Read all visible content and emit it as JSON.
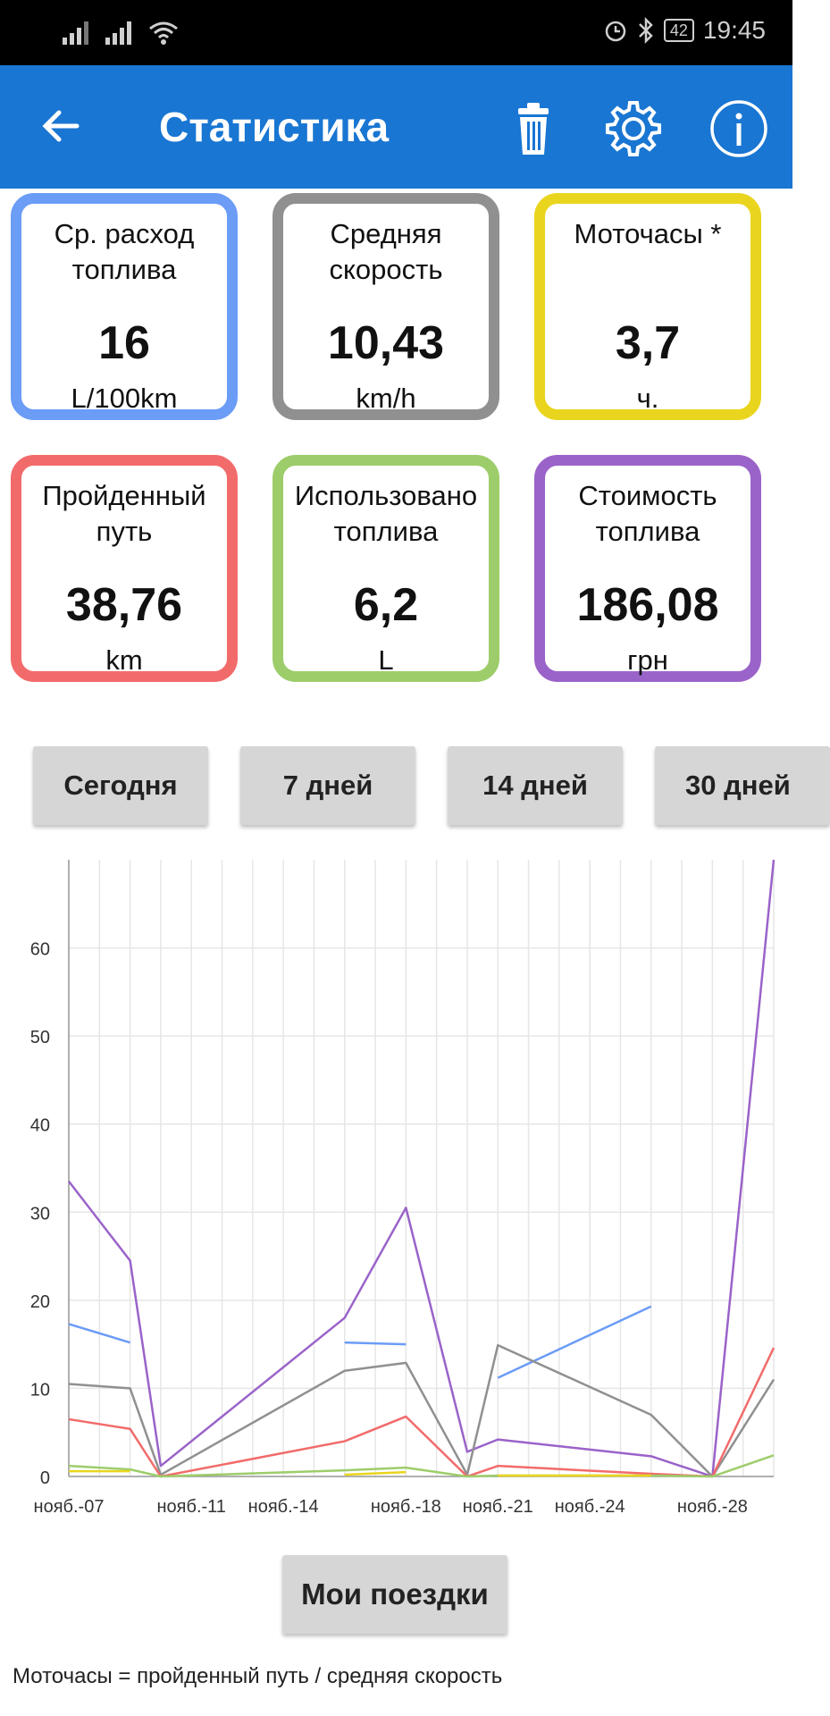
{
  "status_bar": {
    "battery": "42",
    "time": "19:45"
  },
  "header": {
    "title": "Статистика"
  },
  "cards": [
    {
      "label": "Ср. расход топлива",
      "value": "16",
      "unit": "L/100km",
      "color": "#6b9cf6"
    },
    {
      "label": "Средняя скорость",
      "value": "10,43",
      "unit": "km/h",
      "color": "#909090"
    },
    {
      "label": "Моточасы *",
      "value": "3,7",
      "unit": "ч.",
      "color": "#ead51e"
    },
    {
      "label": "Пройденный путь",
      "value": "38,76",
      "unit": "km",
      "color": "#f26b6b"
    },
    {
      "label": "Использовано топлива",
      "value": "6,2",
      "unit": "L",
      "color": "#9dcd6a"
    },
    {
      "label": "Стоимость топлива",
      "value": "186,08",
      "unit": "грн",
      "color": "#9a63c9"
    }
  ],
  "periods": [
    "Сегодня",
    "7 дней",
    "14 дней",
    "30 дней"
  ],
  "chart_data": {
    "type": "line",
    "x_tick_labels": [
      "нояб.-07",
      "нояб.-11",
      "нояб.-14",
      "нояб.-18",
      "нояб.-21",
      "нояб.-24",
      "нояб.-28"
    ],
    "ylim": [
      0,
      70
    ],
    "y_ticks": [
      0,
      10,
      20,
      30,
      40,
      50,
      60
    ],
    "grid": true,
    "series": [
      {
        "color": "#9a63c9",
        "points": [
          [
            7,
            33.5
          ],
          [
            9,
            24.5
          ],
          [
            10,
            1.2
          ],
          [
            16,
            18
          ],
          [
            18,
            30.5
          ],
          [
            20,
            2.8
          ],
          [
            21,
            4.2
          ],
          [
            26,
            2.3
          ],
          [
            28,
            0
          ],
          [
            30,
            70
          ]
        ]
      },
      {
        "color": "#6b9cf6",
        "points": [
          [
            7,
            17.3
          ],
          [
            9,
            15.2
          ],
          [
            null,
            null
          ],
          [
            16,
            15.2
          ],
          [
            18,
            15
          ],
          [
            null,
            null
          ],
          [
            21,
            11.2
          ],
          [
            26,
            19.3
          ]
        ]
      },
      {
        "color": "#909090",
        "points": [
          [
            7,
            10.5
          ],
          [
            9,
            10
          ],
          [
            10,
            0.2
          ],
          [
            16,
            12
          ],
          [
            18,
            12.9
          ],
          [
            20,
            0.2
          ],
          [
            21,
            14.9
          ],
          [
            26,
            7
          ],
          [
            28,
            0
          ],
          [
            30,
            11
          ]
        ]
      },
      {
        "color": "#f26b6b",
        "points": [
          [
            7,
            6.5
          ],
          [
            9,
            5.4
          ],
          [
            10,
            0
          ],
          [
            16,
            4
          ],
          [
            18,
            6.8
          ],
          [
            20,
            0
          ],
          [
            21,
            1.2
          ],
          [
            26,
            0.3
          ],
          [
            28,
            0
          ],
          [
            30,
            14.6
          ]
        ]
      },
      {
        "color": "#9dcd6a",
        "points": [
          [
            7,
            1.2
          ],
          [
            9,
            0.8
          ],
          [
            10,
            0
          ],
          [
            16,
            0.7
          ],
          [
            18,
            1
          ],
          [
            20,
            0
          ],
          [
            21,
            0.1
          ],
          [
            26,
            0.1
          ],
          [
            28,
            0
          ],
          [
            30,
            2.4
          ]
        ]
      },
      {
        "color": "#ead51e",
        "points": [
          [
            7,
            0.6
          ],
          [
            9,
            0.6
          ],
          [
            null,
            null
          ],
          [
            16,
            0.2
          ],
          [
            18,
            0.5
          ],
          [
            null,
            null
          ],
          [
            21,
            0.1
          ],
          [
            26,
            0.1
          ]
        ]
      }
    ]
  },
  "trips_button": "Мои поездки",
  "footnote": "Моточасы = пройденный путь / средняя скорость"
}
